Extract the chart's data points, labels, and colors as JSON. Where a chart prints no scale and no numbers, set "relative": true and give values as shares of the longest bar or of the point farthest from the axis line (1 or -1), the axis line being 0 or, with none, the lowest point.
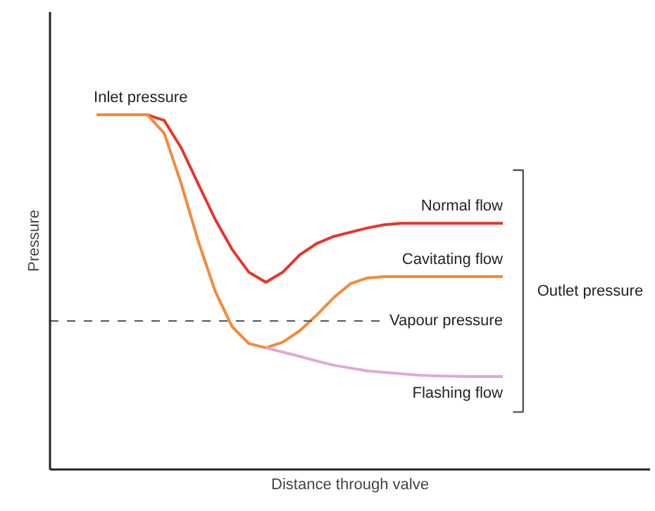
{
  "chart_data": {
    "type": "line",
    "relative": true,
    "xlabel": "Distance through valve",
    "ylabel": "Pressure",
    "categories": [
      null,
      null,
      null,
      null,
      null,
      null,
      null,
      null,
      null,
      null,
      null,
      null,
      null,
      null,
      null,
      null,
      null,
      null,
      null,
      null,
      null,
      null,
      null,
      null,
      null
    ],
    "series": [
      {
        "name": "Normal flow",
        "color": "#e8352a",
        "values": [
          null,
          null,
          null,
          1.0,
          0.984,
          0.907,
          0.806,
          0.706,
          0.621,
          0.556,
          0.528,
          0.556,
          0.605,
          0.637,
          0.657,
          0.669,
          0.681,
          0.69,
          0.694,
          0.694,
          0.694,
          0.694,
          0.694,
          0.694,
          0.694
        ]
      },
      {
        "name": "Cavitating flow",
        "color": "#f5893a",
        "values": [
          1.0,
          1.0,
          1.0,
          1.0,
          0.948,
          0.806,
          0.645,
          0.504,
          0.403,
          0.355,
          0.343,
          0.359,
          0.391,
          0.435,
          0.484,
          0.524,
          0.54,
          0.544,
          0.544,
          0.544,
          0.544,
          0.544,
          0.544,
          0.544,
          0.544
        ]
      },
      {
        "name": "Flashing flow",
        "color": "#e0a8d8",
        "values": [
          null,
          null,
          null,
          null,
          null,
          null,
          null,
          null,
          null,
          null,
          0.343,
          0.331,
          0.319,
          0.306,
          0.294,
          0.286,
          0.278,
          0.274,
          0.27,
          0.266,
          0.264,
          0.263,
          0.262,
          0.262,
          0.262
        ]
      }
    ],
    "ref_lines": [
      {
        "axis": "y",
        "value": 0.419,
        "label": "Vapour pressure",
        "color": "#555555",
        "line_style": "dashed"
      }
    ],
    "annotations": [
      "Inlet pressure",
      "Outlet pressure"
    ],
    "marker": "none",
    "line_style": "solid"
  }
}
